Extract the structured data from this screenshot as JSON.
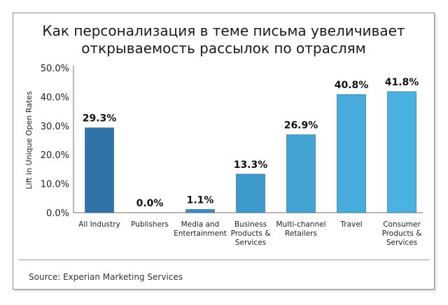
{
  "title_lines": [
    "Как персонализация в теме письма увеличивает",
    "открываемость рассылок по отраслям"
  ],
  "source": "Source: Experian Marketing Services",
  "chart_data": {
    "type": "bar",
    "title": "Как персонализация в теме письма увеличивает открываемость рассылок по отраслям",
    "ylabel": "Lift in Unique Open Rates",
    "xlabel": "",
    "ylim": [
      0,
      50
    ],
    "yticks": [
      "0.0%",
      "10.0%",
      "20.0%",
      "30.0%",
      "40.0%",
      "50.0%"
    ],
    "categories": [
      [
        "All Industry"
      ],
      [
        "Publishers"
      ],
      [
        "Media and",
        "Entertainment"
      ],
      [
        "Business",
        "Products &",
        "Services"
      ],
      [
        "Multi-channel",
        "Retailers"
      ],
      [
        "Travel"
      ],
      [
        "Consumer",
        "Products &",
        "Services"
      ]
    ],
    "values": [
      29.3,
      0.0,
      1.1,
      13.3,
      26.9,
      40.8,
      41.8
    ],
    "labels": [
      "29.3%",
      "0.0%",
      "1.1%",
      "13.3%",
      "26.9%",
      "40.8%",
      "41.8%"
    ],
    "colors": [
      "#2f73a8",
      "#3683b8",
      "#3a8fc2",
      "#3f9acc",
      "#43a4d4",
      "#47acdc",
      "#4ab2e0"
    ],
    "grid": false,
    "legend": "none"
  }
}
